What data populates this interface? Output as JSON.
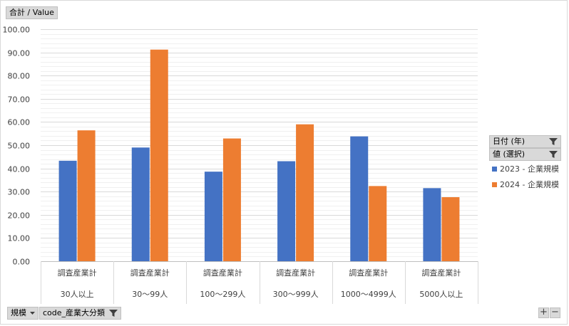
{
  "value_field": "合計 / Value",
  "legend": {
    "filters": [
      {
        "label": "日付 (年)",
        "icon": "filter-icon"
      },
      {
        "label": "値 (選択)",
        "icon": "filter-icon"
      }
    ]
  },
  "axis_fields": [
    {
      "label": "規模",
      "icon": "dropdown-arrow-icon"
    },
    {
      "label": "code_産業大分類",
      "icon": "filter-icon"
    }
  ],
  "zoom": {
    "plus": "+",
    "minus": "−"
  },
  "colors": {
    "series_2023": "#4472c4",
    "series_2024": "#ed7d31"
  },
  "chart_data": {
    "type": "bar",
    "categories": [
      {
        "inner": "調査産業計",
        "outer": "30人以上"
      },
      {
        "inner": "調査産業計",
        "outer": "30～99人"
      },
      {
        "inner": "調査産業計",
        "outer": "100～299人"
      },
      {
        "inner": "調査産業計",
        "outer": "300～999人"
      },
      {
        "inner": "調査産業計",
        "outer": "1000～4999人"
      },
      {
        "inner": "調査産業計",
        "outer": "5000人以上"
      }
    ],
    "series": [
      {
        "name": "2023 - 企業規模",
        "color": "#4472c4",
        "values": [
          43.3,
          49.0,
          38.6,
          43.1,
          53.8,
          31.5
        ]
      },
      {
        "name": "2024 - 企業規模",
        "color": "#ed7d31",
        "values": [
          56.4,
          91.2,
          52.9,
          59.0,
          32.4,
          27.6
        ]
      }
    ],
    "yticks": [
      "0.00",
      "10.00",
      "20.00",
      "30.00",
      "40.00",
      "50.00",
      "60.00",
      "70.00",
      "80.00",
      "90.00",
      "100.00"
    ],
    "ylim": [
      0,
      100
    ],
    "minor_step": 2,
    "grid": true,
    "legend_position": "right"
  }
}
